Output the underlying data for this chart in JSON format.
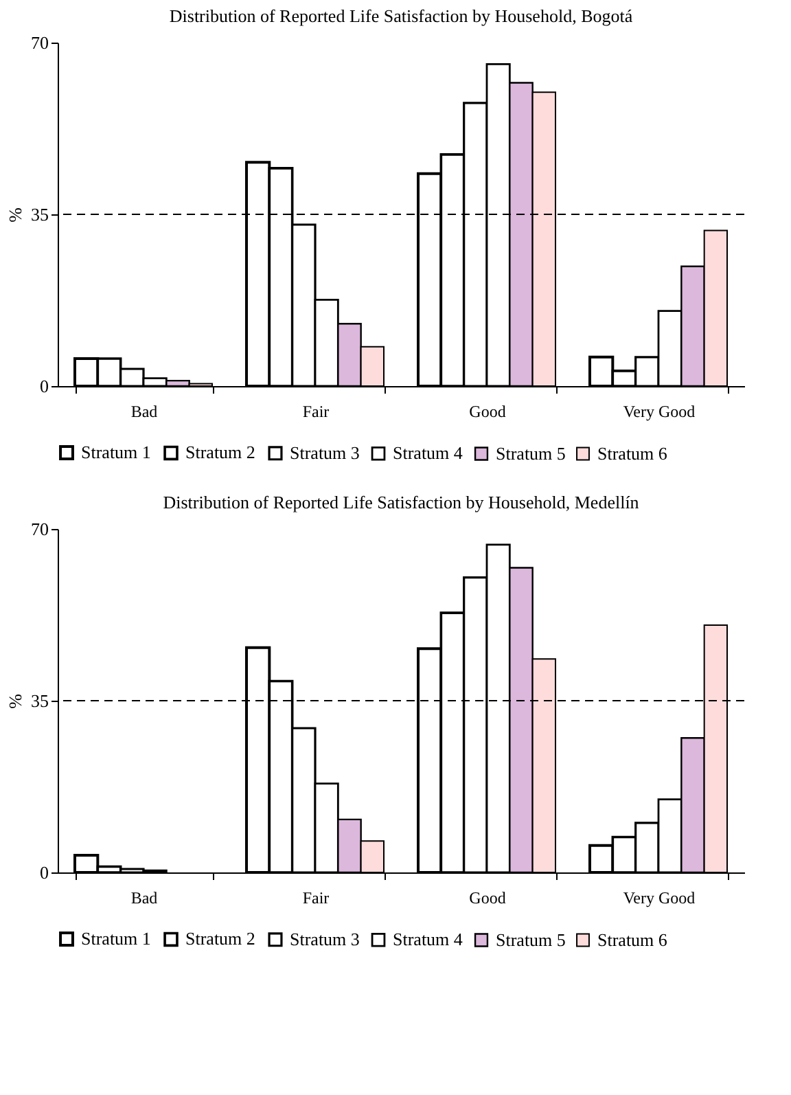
{
  "chart_data": [
    {
      "type": "bar",
      "title": "Distribution of Reported Life Satisfaction by Household, Bogotá",
      "ylabel": "%",
      "categories": [
        "Bad",
        "Fair",
        "Good",
        "Very Good"
      ],
      "ylim": [
        0,
        70
      ],
      "yticks": [
        0,
        35,
        70
      ],
      "grid": false,
      "legend": "bottom",
      "ref_lines": [
        {
          "axis": "y",
          "value": 35,
          "line_style": "dashed"
        }
      ],
      "series": [
        {
          "name": "Stratum 1",
          "color": "#ffffff",
          "values": [
            5.6,
            45.6,
            43.3,
            5.9
          ]
        },
        {
          "name": "Stratum 2",
          "color": "#ffffff",
          "values": [
            5.6,
            44.4,
            47.2,
            3.1
          ]
        },
        {
          "name": "Stratum 3",
          "color": "#ffffff",
          "values": [
            3.5,
            32.9,
            57.7,
            5.9
          ]
        },
        {
          "name": "Stratum 4",
          "color": "#ffffff",
          "values": [
            1.6,
            17.6,
            65.6,
            15.3
          ]
        },
        {
          "name": "Stratum 5",
          "color": "#dcb8dc",
          "values": [
            1.1,
            12.7,
            61.8,
            24.4
          ]
        },
        {
          "name": "Stratum 6",
          "color": "#ffdcdc",
          "values": [
            0.5,
            8.0,
            59.9,
            31.7
          ]
        }
      ]
    },
    {
      "type": "bar",
      "title": "Distribution of Reported Life Satisfaction by Household, Medellín",
      "ylabel": "%",
      "categories": [
        "Bad",
        "Fair",
        "Good",
        "Very Good"
      ],
      "ylim": [
        0,
        70
      ],
      "yticks": [
        0,
        35,
        70
      ],
      "grid": false,
      "legend": "bottom",
      "ref_lines": [
        {
          "axis": "y",
          "value": 35,
          "line_style": "dashed"
        }
      ],
      "series": [
        {
          "name": "Stratum 1",
          "color": "#ffffff",
          "values": [
            3.5,
            45.8,
            45.6,
            5.5
          ]
        },
        {
          "name": "Stratum 2",
          "color": "#ffffff",
          "values": [
            1.2,
            39.0,
            52.9,
            7.2
          ]
        },
        {
          "name": "Stratum 3",
          "color": "#ffffff",
          "values": [
            0.7,
            29.4,
            60.1,
            10.1
          ]
        },
        {
          "name": "Stratum 4",
          "color": "#ffffff",
          "values": [
            0.4,
            18.1,
            66.8,
            14.9
          ]
        },
        {
          "name": "Stratum 5",
          "color": "#dcb8dc",
          "values": [
            null,
            10.8,
            62.1,
            27.4
          ]
        },
        {
          "name": "Stratum 6",
          "color": "#ffdcdc",
          "values": [
            null,
            6.4,
            43.5,
            50.4
          ]
        }
      ]
    }
  ]
}
